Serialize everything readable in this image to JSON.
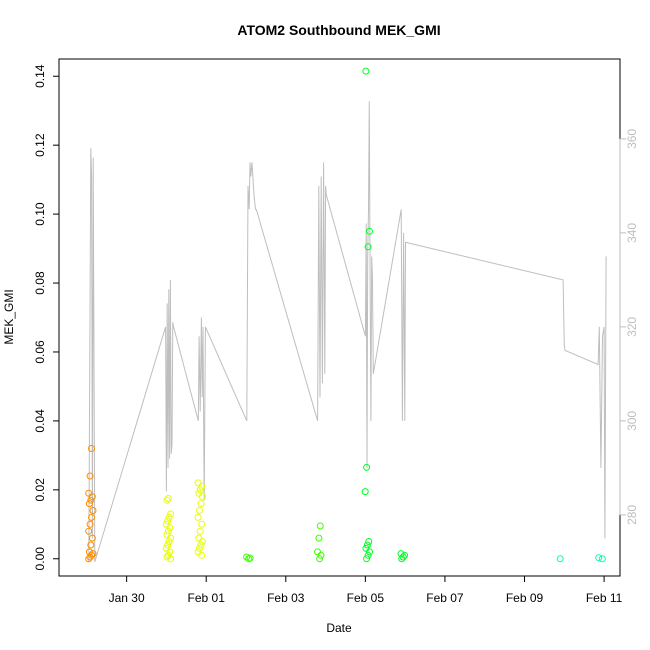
{
  "chart_data": {
    "type": "scatter",
    "title": "ATOM2 Southbound MEK_GMI",
    "xlabel": "Date",
    "ylabel": "MEK_GMI",
    "x_ticks": [
      "Jan 30",
      "Feb 01",
      "Feb 03",
      "Feb 05",
      "Feb 07",
      "Feb 09",
      "Feb 11"
    ],
    "xlim_days": [
      -2.7,
      11.4
    ],
    "y_ticks": [
      0.0,
      0.02,
      0.04,
      0.06,
      0.08,
      0.1,
      0.12,
      0.14
    ],
    "ylim": [
      -0.005,
      0.145
    ],
    "y2_ticks": [
      280,
      300,
      320,
      340,
      360
    ],
    "y2lim": [
      267,
      377
    ],
    "grid": false,
    "legend": "none",
    "colors": {
      "altitude_line": "#bebebe",
      "secondary_axis": "#bebebe",
      "orange": "#ff8c00",
      "yellow": "#e6ff00",
      "green_yellow": "#a8ff00",
      "green": "#3cff00",
      "bright_green": "#00ff24",
      "teal": "#00ffb0"
    },
    "clusters": [
      {
        "x": -1.9,
        "color": "#ff8c00",
        "values": [
          0.0,
          0.0005,
          0.001,
          0.0015,
          0.002,
          0.004,
          0.006,
          0.008,
          0.01,
          0.012,
          0.014,
          0.016,
          0.017,
          0.018,
          0.019,
          0.024,
          0.032
        ]
      },
      {
        "x": 0.05,
        "color": "#e6ff00",
        "values": [
          0.0,
          0.0005,
          0.001,
          0.002,
          0.003,
          0.004,
          0.005,
          0.006,
          0.007,
          0.008,
          0.009,
          0.01,
          0.011,
          0.012,
          0.013,
          0.017,
          0.0175
        ]
      },
      {
        "x": 0.85,
        "color": "#e6ff00",
        "values": [
          0.001,
          0.002,
          0.003,
          0.004,
          0.005,
          0.006,
          0.008,
          0.01,
          0.012,
          0.014,
          0.016,
          0.018,
          0.019,
          0.02,
          0.021,
          0.022
        ]
      },
      {
        "x": 2.05,
        "color": "#3cff00",
        "values": [
          0.0,
          0.0002,
          0.0005
        ]
      },
      {
        "x": 3.85,
        "color": "#3cff00",
        "values": [
          0.0,
          0.001,
          0.002,
          0.006,
          0.0095
        ]
      },
      {
        "x": 5.05,
        "color": "#00ff24",
        "values": [
          0.0,
          0.001,
          0.002,
          0.003,
          0.004,
          0.005,
          0.0195,
          0.0265,
          0.0905,
          0.095,
          0.1415
        ]
      },
      {
        "x": 5.95,
        "color": "#00ff24",
        "values": [
          0.0,
          0.0005,
          0.001,
          0.0015
        ]
      },
      {
        "x": 9.95,
        "color": "#00ffb0",
        "values": [
          0.0
        ]
      },
      {
        "x": 10.9,
        "color": "#00ffb0",
        "values": [
          0.0,
          0.0003
        ]
      }
    ],
    "altitude_series": {
      "name": "",
      "x": [
        -1.95,
        -1.9,
        -1.88,
        -1.86,
        -1.84,
        -1.8,
        -0.02,
        0.0,
        0.02,
        0.04,
        0.06,
        0.08,
        0.1,
        0.12,
        0.14,
        0.16,
        0.18,
        0.8,
        0.82,
        0.85,
        0.88,
        0.9,
        0.92,
        0.95,
        0.98,
        2.02,
        2.05,
        2.08,
        2.1,
        2.12,
        2.15,
        2.2,
        2.24,
        2.26,
        3.8,
        3.83,
        3.86,
        3.89,
        3.92,
        3.95,
        3.98,
        4.0,
        4.02,
        5.0,
        5.02,
        5.04,
        5.06,
        5.08,
        5.1,
        5.12,
        5.14,
        5.16,
        5.18,
        5.2,
        5.9,
        5.93,
        5.96,
        5.99,
        6.01,
        9.97,
        10.0,
        10.02,
        10.85,
        10.88,
        10.92,
        10.96,
        11.0,
        11.02,
        11.05
      ],
      "y": [
        270,
        358,
        352,
        275,
        356,
        270,
        320,
        285,
        325,
        290,
        328,
        292,
        330,
        293,
        295,
        321,
        320,
        300,
        318,
        302,
        322,
        305,
        320,
        283,
        320,
        300,
        350,
        345,
        355,
        352,
        355,
        348,
        345,
        345,
        300,
        350,
        305,
        352,
        308,
        355,
        310,
        350,
        348,
        318,
        342,
        290,
        335,
        345,
        368,
        330,
        300,
        335,
        330,
        310,
        345,
        300,
        340,
        300,
        338,
        330,
        316,
        315,
        312,
        320,
        290,
        318,
        320,
        275,
        335
      ]
    }
  }
}
